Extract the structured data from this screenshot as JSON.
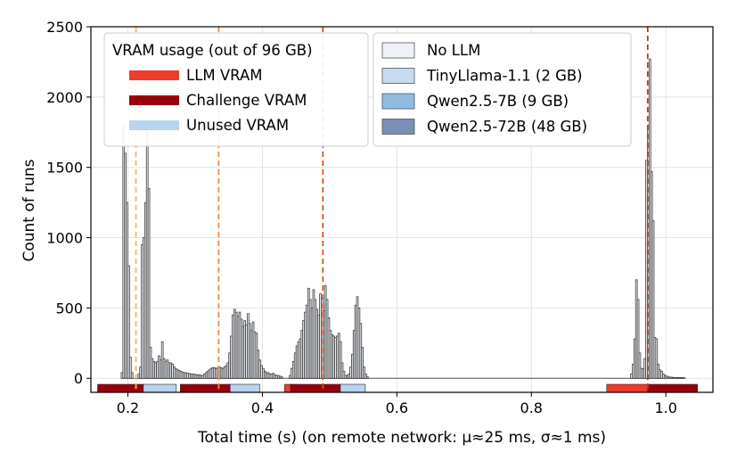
{
  "chart_data": {
    "type": "bar",
    "xlabel": "Total time (s)  (on remote network: μ≈25 ms, σ≈1 ms)",
    "ylabel": "Count of runs",
    "xlim": [
      0.145,
      1.07
    ],
    "ylim": [
      -100,
      2500
    ],
    "grid": true,
    "x_ticks": [
      {
        "value": 0.2,
        "label": "0.2"
      },
      {
        "value": 0.4,
        "label": "0.4"
      },
      {
        "value": 0.6,
        "label": "0.6"
      },
      {
        "value": 0.8,
        "label": "0.8"
      },
      {
        "value": 1.0,
        "label": "1.0"
      }
    ],
    "y_ticks": [
      {
        "value": 0,
        "label": "0"
      },
      {
        "value": 500,
        "label": "500"
      },
      {
        "value": 1000,
        "label": "1000"
      },
      {
        "value": 1500,
        "label": "1500"
      },
      {
        "value": 2000,
        "label": "2000"
      },
      {
        "value": 2500,
        "label": "2500"
      }
    ],
    "histogram": {
      "bin_width": 0.0025,
      "series": [
        {
          "name": "No LLM",
          "color": "#eef2f8",
          "bins": [
            [
              0.19,
              40
            ],
            [
              0.1925,
              1800
            ],
            [
              0.195,
              1600
            ],
            [
              0.1975,
              1250
            ],
            [
              0.2,
              800
            ],
            [
              0.2025,
              150
            ],
            [
              0.205,
              40
            ],
            [
              0.215,
              30
            ],
            [
              0.2175,
              80
            ],
            [
              0.22,
              950
            ],
            [
              0.2225,
              1000
            ],
            [
              0.225,
              1250
            ],
            [
              0.2275,
              1750
            ],
            [
              0.23,
              1350
            ],
            [
              0.2325,
              220
            ],
            [
              0.235,
              140
            ],
            [
              0.2375,
              120
            ],
            [
              0.24,
              110
            ],
            [
              0.2425,
              120
            ],
            [
              0.245,
              160
            ],
            [
              0.2475,
              130
            ],
            [
              0.25,
              260
            ],
            [
              0.2525,
              140
            ],
            [
              0.255,
              120
            ],
            [
              0.2575,
              130
            ],
            [
              0.26,
              110
            ],
            [
              0.2625,
              110
            ],
            [
              0.265,
              100
            ],
            [
              0.2675,
              80
            ],
            [
              0.27,
              70
            ],
            [
              0.2725,
              60
            ],
            [
              0.275,
              55
            ],
            [
              0.2775,
              50
            ],
            [
              0.28,
              45
            ],
            [
              0.2825,
              40
            ],
            [
              0.285,
              40
            ],
            [
              0.2875,
              35
            ],
            [
              0.29,
              35
            ],
            [
              0.2925,
              30
            ],
            [
              0.295,
              30
            ],
            [
              0.2975,
              30
            ],
            [
              0.3,
              25
            ],
            [
              0.3025,
              25
            ],
            [
              0.305,
              25
            ],
            [
              0.3075,
              20
            ],
            [
              0.31,
              20
            ],
            [
              0.3125,
              30
            ],
            [
              0.315,
              40
            ],
            [
              0.3175,
              50
            ],
            [
              0.32,
              60
            ],
            [
              0.3225,
              70
            ],
            [
              0.325,
              75
            ],
            [
              0.3275,
              75
            ],
            [
              0.33,
              70
            ],
            [
              0.3325,
              75
            ],
            [
              0.335,
              80
            ],
            [
              0.3375,
              75
            ],
            [
              0.34,
              70
            ],
            [
              0.3425,
              80
            ],
            [
              0.345,
              90
            ],
            [
              0.3475,
              110
            ],
            [
              0.35,
              180
            ],
            [
              0.3525,
              300
            ],
            [
              0.355,
              450
            ],
            [
              0.3575,
              490
            ],
            [
              0.36,
              470
            ],
            [
              0.3625,
              440
            ],
            [
              0.365,
              470
            ],
            [
              0.3675,
              420
            ],
            [
              0.37,
              370
            ],
            [
              0.3725,
              410
            ],
            [
              0.375,
              380
            ],
            [
              0.3775,
              460
            ],
            [
              0.38,
              390
            ],
            [
              0.3825,
              340
            ],
            [
              0.385,
              400
            ],
            [
              0.3875,
              330
            ],
            [
              0.39,
              320
            ],
            [
              0.3925,
              200
            ],
            [
              0.395,
              130
            ],
            [
              0.3975,
              90
            ],
            [
              0.4,
              70
            ],
            [
              0.4025,
              50
            ],
            [
              0.405,
              40
            ],
            [
              0.4075,
              40
            ],
            [
              0.41,
              30
            ],
            [
              0.4125,
              30
            ],
            [
              0.415,
              35
            ],
            [
              0.4175,
              25
            ],
            [
              0.42,
              20
            ],
            [
              0.4225,
              20
            ],
            [
              0.425,
              15
            ],
            [
              0.4275,
              10
            ],
            [
              0.44,
              20
            ],
            [
              0.4425,
              70
            ],
            [
              0.445,
              120
            ],
            [
              0.4475,
              180
            ],
            [
              0.45,
              230
            ],
            [
              0.4525,
              260
            ],
            [
              0.455,
              280
            ],
            [
              0.4575,
              340
            ],
            [
              0.46,
              410
            ],
            [
              0.4625,
              470
            ],
            [
              0.465,
              520
            ],
            [
              0.4675,
              640
            ],
            [
              0.47,
              560
            ],
            [
              0.4725,
              500
            ],
            [
              0.475,
              630
            ],
            [
              0.4775,
              560
            ],
            [
              0.48,
              490
            ],
            [
              0.4825,
              450
            ],
            [
              0.485,
              600
            ],
            [
              0.4875,
              570
            ],
            [
              0.49,
              480
            ],
            [
              0.4925,
              660
            ],
            [
              0.495,
              560
            ],
            [
              0.4975,
              430
            ],
            [
              0.5,
              340
            ],
            [
              0.5025,
              310
            ],
            [
              0.505,
              300
            ],
            [
              0.5075,
              290
            ],
            [
              0.51,
              300
            ],
            [
              0.5125,
              320
            ],
            [
              0.515,
              260
            ],
            [
              0.5175,
              110
            ],
            [
              0.52,
              50
            ],
            [
              0.5225,
              20
            ],
            [
              0.525,
              20
            ],
            [
              0.5275,
              30
            ],
            [
              0.53,
              80
            ],
            [
              0.5325,
              170
            ],
            [
              0.535,
              340
            ],
            [
              0.5375,
              520
            ],
            [
              0.54,
              580
            ],
            [
              0.5425,
              500
            ],
            [
              0.545,
              390
            ],
            [
              0.5475,
              220
            ],
            [
              0.55,
              80
            ],
            [
              0.5525,
              30
            ],
            [
              0.555,
              10
            ],
            [
              0.9475,
              30
            ],
            [
              0.95,
              100
            ],
            [
              0.9525,
              280
            ],
            [
              0.955,
              700
            ],
            [
              0.9575,
              560
            ],
            [
              0.96,
              180
            ],
            [
              0.9625,
              70
            ],
            [
              0.965,
              70
            ],
            [
              0.9675,
              140
            ],
            [
              0.97,
              1550
            ],
            [
              0.9725,
              1800
            ],
            [
              0.975,
              2270
            ],
            [
              0.9775,
              1470
            ],
            [
              0.98,
              1120
            ],
            [
              0.9825,
              290
            ],
            [
              0.985,
              280
            ],
            [
              0.9875,
              100
            ],
            [
              0.99,
              60
            ],
            [
              0.9925,
              50
            ],
            [
              0.995,
              30
            ],
            [
              0.9975,
              20
            ],
            [
              1.0,
              15
            ],
            [
              1.0025,
              10
            ],
            [
              1.005,
              8
            ],
            [
              1.0075,
              8
            ],
            [
              1.01,
              5
            ],
            [
              1.0125,
              5
            ],
            [
              1.015,
              5
            ],
            [
              1.0175,
              5
            ],
            [
              1.02,
              5
            ],
            [
              1.0225,
              5
            ],
            [
              1.025,
              5
            ]
          ]
        },
        {
          "name": "TinyLlama-1.1 (2 GB)",
          "color": "#c6dbef",
          "bins": []
        },
        {
          "name": "Qwen2.5-7B (9 GB)",
          "color": "#8fbcdf",
          "bins": []
        },
        {
          "name": "Qwen2.5-72B (48 GB)",
          "color": "#7a8fb5",
          "bins": []
        }
      ]
    },
    "vlines": [
      {
        "x": 0.212,
        "color": "#fbb266"
      },
      {
        "x": 0.335,
        "color": "#f08b3a"
      },
      {
        "x": 0.49,
        "color": "#d9531e"
      },
      {
        "x": 0.973,
        "color": "#b83d12"
      }
    ],
    "vram_bars": [
      {
        "name": "No LLM",
        "segments": [
          {
            "kind": "challenge",
            "x0": 0.155,
            "x1": 0.223
          },
          {
            "kind": "unused",
            "x0": 0.223,
            "x1": 0.272
          }
        ]
      },
      {
        "name": "TinyLlama-1.1 (2 GB)",
        "segments": [
          {
            "kind": "challenge",
            "x0": 0.278,
            "x1": 0.352
          },
          {
            "kind": "unused",
            "x0": 0.352,
            "x1": 0.396
          }
        ]
      },
      {
        "name": "Qwen2.5-7B (9 GB)",
        "segments": [
          {
            "kind": "llm",
            "x0": 0.433,
            "x1": 0.442
          },
          {
            "kind": "challenge",
            "x0": 0.442,
            "x1": 0.516
          },
          {
            "kind": "unused",
            "x0": 0.516,
            "x1": 0.553
          }
        ]
      },
      {
        "name": "Qwen2.5-72B (48 GB)",
        "segments": [
          {
            "kind": "llm",
            "x0": 0.912,
            "x1": 0.973
          },
          {
            "kind": "challenge",
            "x0": 0.973,
            "x1": 1.047
          }
        ]
      }
    ],
    "vram_legend_title": "VRAM usage (out of 96 GB)",
    "vram_legend": [
      {
        "label": "LLM VRAM",
        "color": "#ef3b2c"
      },
      {
        "label": "Challenge VRAM",
        "color": "#99000d"
      },
      {
        "label": "Unused VRAM",
        "color": "#b9d4ef"
      }
    ],
    "legend_placement": "top-left and top-center"
  }
}
